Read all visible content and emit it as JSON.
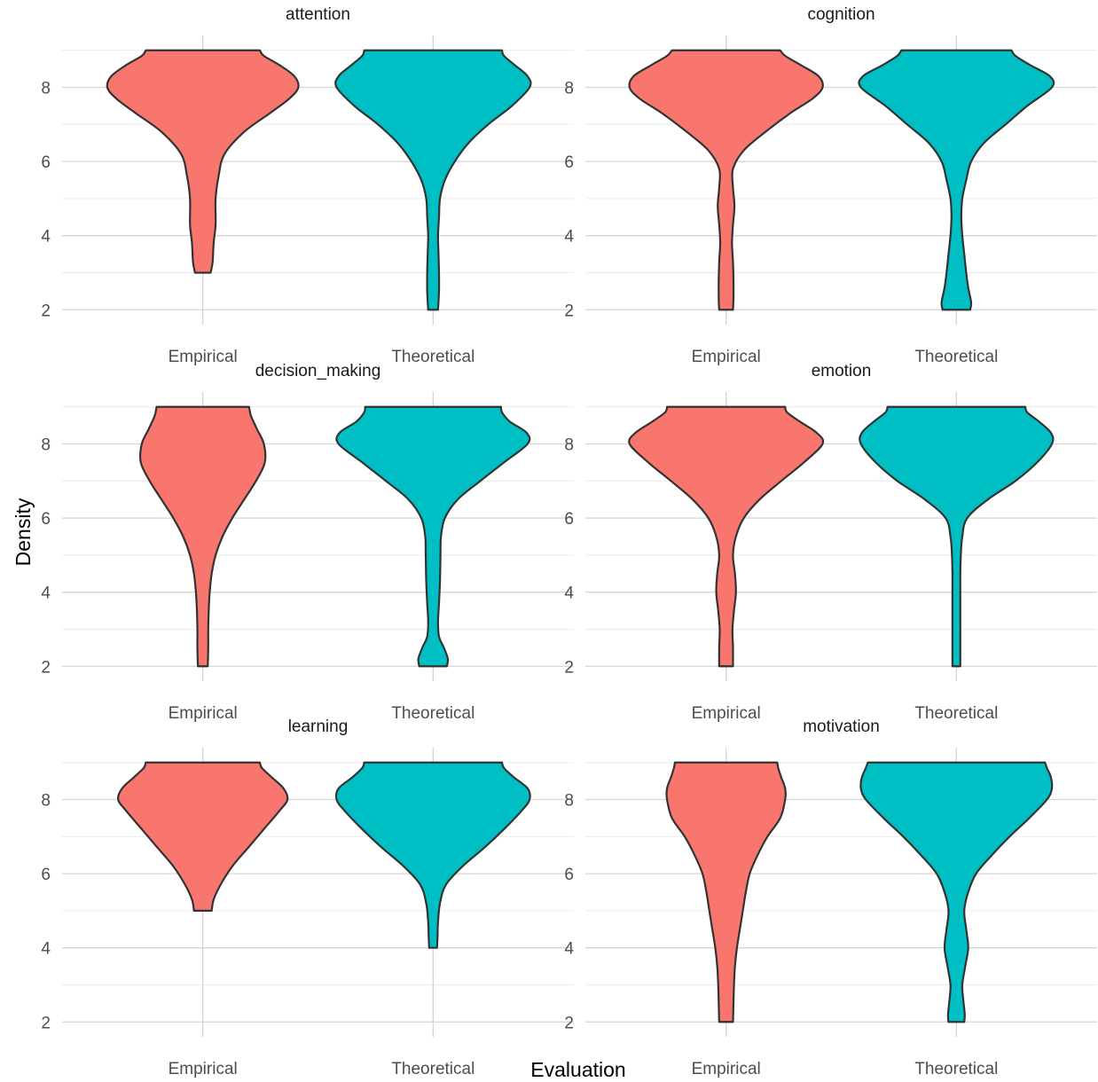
{
  "chart_data": {
    "type": "violin",
    "xlabel": "Evaluation",
    "ylabel": "Density",
    "ylim": [
      1.6,
      9.4
    ],
    "y_ticks": [
      "2",
      "4",
      "6",
      "8"
    ],
    "categories": [
      "Empirical",
      "Theoretical"
    ],
    "colors": {
      "Empirical": "#F8766D",
      "Theoretical": "#00BFC4"
    },
    "grid": true,
    "legend": "none",
    "facets": [
      {
        "title": "attention",
        "violins": [
          {
            "category": "Empirical",
            "profile": [
              [
                3.0,
                0.08
              ],
              [
                3.3,
                0.1
              ],
              [
                3.8,
                0.11
              ],
              [
                4.3,
                0.13
              ],
              [
                5.0,
                0.13
              ],
              [
                5.6,
                0.16
              ],
              [
                6.2,
                0.22
              ],
              [
                6.8,
                0.42
              ],
              [
                7.3,
                0.68
              ],
              [
                7.7,
                0.88
              ],
              [
                8.0,
                0.97
              ],
              [
                8.3,
                0.93
              ],
              [
                8.6,
                0.78
              ],
              [
                8.85,
                0.62
              ],
              [
                9.0,
                0.58
              ]
            ]
          },
          {
            "category": "Theoretical",
            "profile": [
              [
                2.0,
                0.05
              ],
              [
                2.5,
                0.06
              ],
              [
                3.0,
                0.06
              ],
              [
                3.5,
                0.055
              ],
              [
                4.0,
                0.05
              ],
              [
                4.5,
                0.06
              ],
              [
                5.0,
                0.07
              ],
              [
                5.5,
                0.12
              ],
              [
                6.0,
                0.22
              ],
              [
                6.5,
                0.36
              ],
              [
                7.0,
                0.56
              ],
              [
                7.5,
                0.8
              ],
              [
                8.0,
                0.98
              ],
              [
                8.3,
                0.96
              ],
              [
                8.6,
                0.83
              ],
              [
                8.85,
                0.72
              ],
              [
                9.0,
                0.7
              ]
            ]
          }
        ]
      },
      {
        "title": "cognition",
        "violins": [
          {
            "category": "Empirical",
            "profile": [
              [
                2.0,
                0.07
              ],
              [
                2.3,
                0.075
              ],
              [
                2.8,
                0.075
              ],
              [
                3.3,
                0.07
              ],
              [
                3.8,
                0.06
              ],
              [
                4.3,
                0.07
              ],
              [
                4.8,
                0.085
              ],
              [
                5.3,
                0.07
              ],
              [
                5.8,
                0.07
              ],
              [
                6.3,
                0.18
              ],
              [
                6.8,
                0.4
              ],
              [
                7.3,
                0.65
              ],
              [
                7.7,
                0.88
              ],
              [
                8.0,
                0.98
              ],
              [
                8.3,
                0.94
              ],
              [
                8.6,
                0.76
              ],
              [
                8.85,
                0.6
              ],
              [
                9.0,
                0.55
              ]
            ]
          },
          {
            "category": "Theoretical",
            "profile": [
              [
                2.0,
                0.14
              ],
              [
                2.2,
                0.15
              ],
              [
                2.6,
                0.12
              ],
              [
                3.0,
                0.1
              ],
              [
                3.5,
                0.08
              ],
              [
                4.0,
                0.06
              ],
              [
                4.5,
                0.05
              ],
              [
                5.0,
                0.06
              ],
              [
                5.5,
                0.1
              ],
              [
                6.0,
                0.15
              ],
              [
                6.5,
                0.28
              ],
              [
                7.0,
                0.5
              ],
              [
                7.5,
                0.72
              ],
              [
                8.0,
                0.97
              ],
              [
                8.3,
                0.95
              ],
              [
                8.6,
                0.75
              ],
              [
                8.85,
                0.6
              ],
              [
                9.0,
                0.56
              ]
            ]
          }
        ]
      },
      {
        "title": "decision_making",
        "violins": [
          {
            "category": "Empirical",
            "profile": [
              [
                2.0,
                0.05
              ],
              [
                2.5,
                0.055
              ],
              [
                3.0,
                0.055
              ],
              [
                3.5,
                0.06
              ],
              [
                4.0,
                0.07
              ],
              [
                4.5,
                0.09
              ],
              [
                5.0,
                0.13
              ],
              [
                5.5,
                0.2
              ],
              [
                6.0,
                0.3
              ],
              [
                6.5,
                0.42
              ],
              [
                7.0,
                0.54
              ],
              [
                7.5,
                0.63
              ],
              [
                8.0,
                0.62
              ],
              [
                8.4,
                0.55
              ],
              [
                8.75,
                0.49
              ],
              [
                9.0,
                0.47
              ]
            ]
          },
          {
            "category": "Theoretical",
            "profile": [
              [
                2.0,
                0.14
              ],
              [
                2.2,
                0.15
              ],
              [
                2.5,
                0.11
              ],
              [
                2.8,
                0.06
              ],
              [
                3.2,
                0.05
              ],
              [
                3.7,
                0.06
              ],
              [
                4.3,
                0.07
              ],
              [
                5.0,
                0.075
              ],
              [
                5.5,
                0.08
              ],
              [
                6.0,
                0.12
              ],
              [
                6.5,
                0.25
              ],
              [
                7.0,
                0.48
              ],
              [
                7.5,
                0.72
              ],
              [
                8.0,
                0.96
              ],
              [
                8.3,
                0.95
              ],
              [
                8.6,
                0.78
              ],
              [
                8.85,
                0.7
              ],
              [
                9.0,
                0.69
              ]
            ]
          }
        ]
      },
      {
        "title": "emotion",
        "violins": [
          {
            "category": "Empirical",
            "profile": [
              [
                2.0,
                0.07
              ],
              [
                2.5,
                0.07
              ],
              [
                3.0,
                0.065
              ],
              [
                3.5,
                0.08
              ],
              [
                4.0,
                0.1
              ],
              [
                4.5,
                0.09
              ],
              [
                5.0,
                0.07
              ],
              [
                5.5,
                0.1
              ],
              [
                6.0,
                0.18
              ],
              [
                6.5,
                0.34
              ],
              [
                7.0,
                0.56
              ],
              [
                7.5,
                0.79
              ],
              [
                8.0,
                0.98
              ],
              [
                8.3,
                0.92
              ],
              [
                8.6,
                0.75
              ],
              [
                8.85,
                0.62
              ],
              [
                9.0,
                0.6
              ]
            ]
          },
          {
            "category": "Theoretical",
            "profile": [
              [
                2.0,
                0.04
              ],
              [
                2.5,
                0.04
              ],
              [
                3.0,
                0.04
              ],
              [
                3.5,
                0.04
              ],
              [
                4.0,
                0.04
              ],
              [
                4.5,
                0.04
              ],
              [
                5.0,
                0.045
              ],
              [
                5.5,
                0.06
              ],
              [
                6.0,
                0.11
              ],
              [
                6.5,
                0.32
              ],
              [
                7.0,
                0.6
              ],
              [
                7.5,
                0.82
              ],
              [
                8.0,
                0.97
              ],
              [
                8.3,
                0.96
              ],
              [
                8.6,
                0.84
              ],
              [
                8.85,
                0.72
              ],
              [
                9.0,
                0.7
              ]
            ]
          }
        ]
      },
      {
        "title": "learning",
        "violins": [
          {
            "category": "Empirical",
            "profile": [
              [
                5.0,
                0.09
              ],
              [
                5.3,
                0.11
              ],
              [
                5.7,
                0.18
              ],
              [
                6.2,
                0.3
              ],
              [
                6.7,
                0.46
              ],
              [
                7.2,
                0.62
              ],
              [
                7.7,
                0.78
              ],
              [
                8.0,
                0.86
              ],
              [
                8.3,
                0.82
              ],
              [
                8.6,
                0.7
              ],
              [
                8.85,
                0.6
              ],
              [
                9.0,
                0.58
              ]
            ]
          },
          {
            "category": "Theoretical",
            "profile": [
              [
                4.0,
                0.04
              ],
              [
                4.3,
                0.045
              ],
              [
                4.7,
                0.05
              ],
              [
                5.2,
                0.07
              ],
              [
                5.7,
                0.13
              ],
              [
                6.2,
                0.3
              ],
              [
                6.7,
                0.52
              ],
              [
                7.2,
                0.72
              ],
              [
                7.7,
                0.9
              ],
              [
                8.0,
                0.98
              ],
              [
                8.3,
                0.96
              ],
              [
                8.6,
                0.82
              ],
              [
                8.85,
                0.72
              ],
              [
                9.0,
                0.7
              ]
            ]
          }
        ]
      },
      {
        "title": "motivation",
        "violins": [
          {
            "category": "Empirical",
            "profile": [
              [
                2.0,
                0.07
              ],
              [
                2.5,
                0.075
              ],
              [
                3.0,
                0.08
              ],
              [
                3.5,
                0.09
              ],
              [
                4.0,
                0.11
              ],
              [
                4.5,
                0.14
              ],
              [
                5.0,
                0.17
              ],
              [
                5.5,
                0.2
              ],
              [
                6.0,
                0.24
              ],
              [
                6.5,
                0.32
              ],
              [
                7.0,
                0.42
              ],
              [
                7.5,
                0.55
              ],
              [
                8.0,
                0.6
              ],
              [
                8.3,
                0.6
              ],
              [
                8.6,
                0.56
              ],
              [
                8.85,
                0.53
              ],
              [
                9.0,
                0.52
              ]
            ]
          },
          {
            "category": "Theoretical",
            "profile": [
              [
                2.0,
                0.08
              ],
              [
                2.2,
                0.085
              ],
              [
                2.6,
                0.07
              ],
              [
                3.0,
                0.06
              ],
              [
                3.5,
                0.09
              ],
              [
                4.0,
                0.12
              ],
              [
                4.5,
                0.1
              ],
              [
                5.0,
                0.08
              ],
              [
                5.5,
                0.12
              ],
              [
                6.0,
                0.2
              ],
              [
                6.5,
                0.36
              ],
              [
                7.0,
                0.54
              ],
              [
                7.5,
                0.74
              ],
              [
                8.0,
                0.92
              ],
              [
                8.3,
                0.97
              ],
              [
                8.6,
                0.96
              ],
              [
                8.85,
                0.92
              ],
              [
                9.0,
                0.9
              ]
            ]
          }
        ]
      }
    ]
  }
}
